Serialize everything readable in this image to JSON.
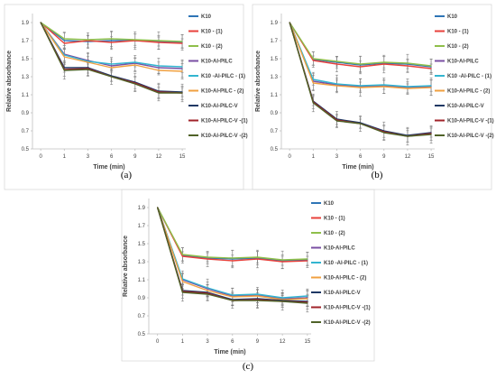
{
  "chart_data": [
    {
      "type": "line",
      "panel_label": "(a)",
      "xlabel": "Time (min)",
      "ylabel": "Relative absorbance",
      "categories": [
        "0",
        "1",
        "3",
        "6",
        "9",
        "12",
        "15"
      ],
      "ylim": [
        0.5,
        2.0
      ],
      "yticks": [
        "0.5",
        "0.7",
        "0.9",
        "1.1",
        "1.3",
        "1.5",
        "1.7",
        "1.9"
      ],
      "legend_position": "right",
      "series": [
        {
          "name": "K10",
          "color": "#2e75b6",
          "values": [
            1.9,
            1.7,
            1.69,
            1.7,
            1.7,
            1.69,
            1.68
          ]
        },
        {
          "name": "K10 - (1)",
          "color": "#e8413b",
          "values": [
            1.9,
            1.67,
            1.7,
            1.68,
            1.7,
            1.68,
            1.67
          ]
        },
        {
          "name": "K10 - (2)",
          "color": "#8fbf4a",
          "values": [
            1.9,
            1.72,
            1.71,
            1.72,
            1.71,
            1.7,
            1.69
          ]
        },
        {
          "name": "K10-Al-PILC",
          "color": "#7a4fa3",
          "values": [
            1.9,
            1.55,
            1.48,
            1.42,
            1.45,
            1.4,
            1.39
          ]
        },
        {
          "name": "K10 -Al-PILC - (1)",
          "color": "#33b5d0",
          "values": [
            1.9,
            1.54,
            1.47,
            1.44,
            1.46,
            1.42,
            1.41
          ]
        },
        {
          "name": "K10-Al-PILC - (2)",
          "color": "#f0a040",
          "values": [
            1.9,
            1.52,
            1.46,
            1.4,
            1.43,
            1.37,
            1.36
          ]
        },
        {
          "name": "K10-Al-PILC-V",
          "color": "#1f3864",
          "values": [
            1.9,
            1.4,
            1.4,
            1.31,
            1.24,
            1.14,
            1.13
          ]
        },
        {
          "name": "K10-Al-PILC-V -(1)",
          "color": "#a0232a",
          "values": [
            1.9,
            1.38,
            1.39,
            1.3,
            1.23,
            1.13,
            1.12
          ]
        },
        {
          "name": "K10-Al-PILC-V -(2)",
          "color": "#4f6228",
          "values": [
            1.9,
            1.37,
            1.38,
            1.3,
            1.22,
            1.12,
            1.12
          ]
        }
      ]
    },
    {
      "type": "line",
      "panel_label": "(b)",
      "xlabel": "Time (min)",
      "ylabel": "Relative absorbance",
      "categories": [
        "0",
        "1",
        "3",
        "6",
        "9",
        "12",
        "15"
      ],
      "ylim": [
        0.5,
        2.0
      ],
      "yticks": [
        "0.5",
        "0.7",
        "0.9",
        "1.1",
        "1.3",
        "1.5",
        "1.7",
        "1.9"
      ],
      "legend_position": "right",
      "series": [
        {
          "name": "K10",
          "color": "#2e75b6",
          "values": [
            1.9,
            1.49,
            1.46,
            1.43,
            1.45,
            1.44,
            1.41
          ]
        },
        {
          "name": "K10 - (1)",
          "color": "#e8413b",
          "values": [
            1.9,
            1.48,
            1.44,
            1.41,
            1.44,
            1.42,
            1.39
          ]
        },
        {
          "name": "K10 - (2)",
          "color": "#8fbf4a",
          "values": [
            1.9,
            1.5,
            1.47,
            1.44,
            1.46,
            1.45,
            1.42
          ]
        },
        {
          "name": "K10-Al-PILC",
          "color": "#7a4fa3",
          "values": [
            1.9,
            1.25,
            1.21,
            1.19,
            1.2,
            1.18,
            1.19
          ]
        },
        {
          "name": "K10 -Al-PILC - (1)",
          "color": "#33b5d0",
          "values": [
            1.9,
            1.27,
            1.22,
            1.2,
            1.21,
            1.19,
            1.2
          ]
        },
        {
          "name": "K10-Al-PILC - (2)",
          "color": "#f0a040",
          "values": [
            1.9,
            1.23,
            1.2,
            1.18,
            1.19,
            1.17,
            1.18
          ]
        },
        {
          "name": "K10-Al-PILC-V",
          "color": "#1f3864",
          "values": [
            1.9,
            1.03,
            0.83,
            0.79,
            0.7,
            0.65,
            0.68
          ]
        },
        {
          "name": "K10-Al-PILC-V -(1)",
          "color": "#a0232a",
          "values": [
            1.9,
            1.02,
            0.82,
            0.78,
            0.69,
            0.64,
            0.67
          ]
        },
        {
          "name": "K10-Al-PILC-V -(2)",
          "color": "#4f6228",
          "values": [
            1.9,
            1.01,
            0.81,
            0.78,
            0.68,
            0.64,
            0.66
          ]
        }
      ]
    },
    {
      "type": "line",
      "panel_label": "(c)",
      "xlabel": "Time (min)",
      "ylabel": "Relative absorbance",
      "categories": [
        "0",
        "1",
        "3",
        "6",
        "9",
        "12",
        "15"
      ],
      "ylim": [
        0.5,
        2.0
      ],
      "yticks": [
        "0.5",
        "0.7",
        "0.9",
        "1.1",
        "1.3",
        "1.5",
        "1.7",
        "1.9"
      ],
      "legend_position": "right",
      "series": [
        {
          "name": "K10",
          "color": "#2e75b6",
          "values": [
            1.9,
            1.37,
            1.34,
            1.33,
            1.34,
            1.31,
            1.32
          ]
        },
        {
          "name": "K10 - (1)",
          "color": "#e8413b",
          "values": [
            1.9,
            1.36,
            1.33,
            1.31,
            1.33,
            1.3,
            1.31
          ]
        },
        {
          "name": "K10 - (2)",
          "color": "#8fbf4a",
          "values": [
            1.9,
            1.38,
            1.35,
            1.34,
            1.35,
            1.32,
            1.33
          ]
        },
        {
          "name": "K10-Al-PILC",
          "color": "#7a4fa3",
          "values": [
            1.9,
            1.1,
            1.0,
            0.92,
            0.93,
            0.89,
            0.9
          ]
        },
        {
          "name": "K10 -Al-PILC - (1)",
          "color": "#33b5d0",
          "values": [
            1.9,
            1.11,
            1.01,
            0.93,
            0.94,
            0.9,
            0.92
          ]
        },
        {
          "name": "K10-Al-PILC - (2)",
          "color": "#f0a040",
          "values": [
            1.9,
            1.08,
            0.98,
            0.91,
            0.92,
            0.88,
            0.89
          ]
        },
        {
          "name": "K10-Al-PILC-V",
          "color": "#1f3864",
          "values": [
            1.9,
            0.98,
            0.96,
            0.88,
            0.89,
            0.87,
            0.86
          ]
        },
        {
          "name": "K10-Al-PILC-V -(1)",
          "color": "#a0232a",
          "values": [
            1.9,
            0.97,
            0.95,
            0.87,
            0.88,
            0.86,
            0.85
          ]
        },
        {
          "name": "K10-Al-PILC-V -(2)",
          "color": "#4f6228",
          "values": [
            1.9,
            0.96,
            0.94,
            0.87,
            0.87,
            0.86,
            0.84
          ]
        }
      ]
    }
  ]
}
